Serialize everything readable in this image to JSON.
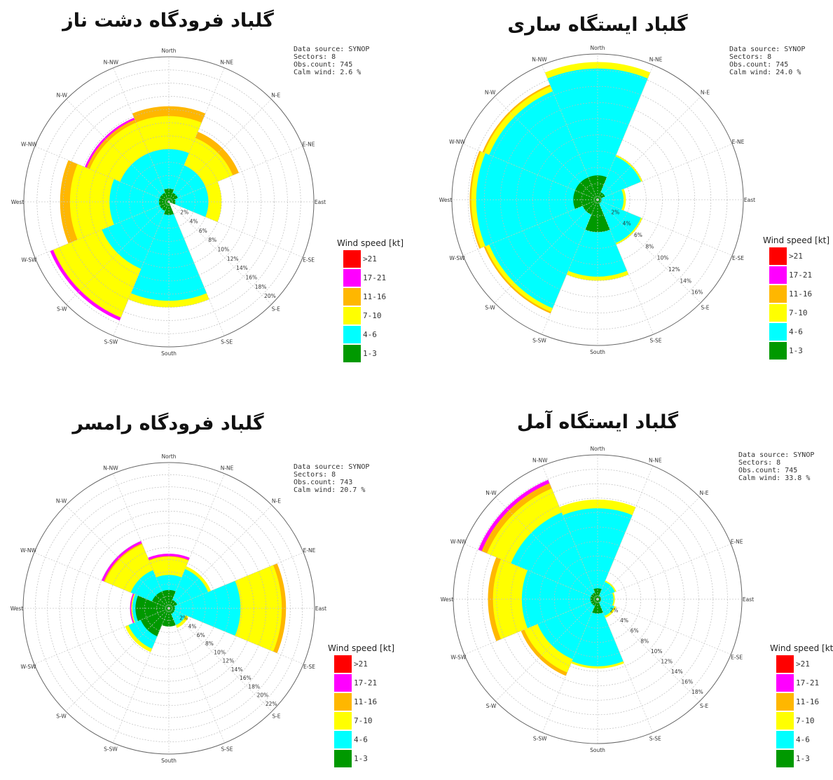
{
  "directions": [
    "North",
    "N-NE",
    "N-E",
    "E-NE",
    "East",
    "E-SE",
    "S-E",
    "S-SE",
    "South",
    "S-SW",
    "S-W",
    "W-SW",
    "West",
    "W-NW",
    "N-W",
    "N-NW"
  ],
  "legend": {
    "title": "Wind speed [kt]",
    "bins": [
      {
        "label": ">21",
        "color": "#ff0000"
      },
      {
        "label": "17-21",
        "color": "#ff00ff"
      },
      {
        "label": "11-16",
        "color": "#ffb700"
      },
      {
        "label": "7-10",
        "color": "#ffff00"
      },
      {
        "label": "4-6",
        "color": "#00ffff"
      },
      {
        "label": "1-3",
        "color": "#009900"
      }
    ]
  },
  "stack_colors": [
    "#009900",
    "#00ffff",
    "#ffff00",
    "#ffb700",
    "#ff00ff",
    "#ff0000"
  ],
  "chart_data": [
    {
      "type": "wind-rose",
      "title": "گلباد فرودگاه دشت ناز",
      "info": [
        "Data source: SYNOP",
        "Sectors: 8",
        "Obs.count: 745",
        "Calm wind: 2.6 %"
      ],
      "radial_ticks": [
        "2%",
        "4%",
        "6%",
        "8%",
        "10%",
        "12%",
        "14%",
        "16%",
        "18%",
        "20%"
      ],
      "rmax": 22,
      "sectors": [
        {
          "dir": "North",
          "cum": [
            2,
            8,
            13,
            14.5,
            14.5,
            14.5
          ]
        },
        {
          "dir": "N-E",
          "cum": [
            1.5,
            6,
            10.5,
            11.5,
            11.5,
            11.5
          ]
        },
        {
          "dir": "East",
          "cum": [
            1,
            6,
            8,
            8,
            8,
            8
          ]
        },
        {
          "dir": "S-E",
          "cum": [
            0,
            0,
            0,
            0,
            0,
            0
          ]
        },
        {
          "dir": "South",
          "cum": [
            2,
            15,
            16,
            16,
            16,
            16
          ]
        },
        {
          "dir": "S-W",
          "cum": [
            1.5,
            11,
            19,
            19,
            19.5,
            19.5
          ]
        },
        {
          "dir": "West",
          "cum": [
            1.5,
            9,
            15,
            16.5,
            16.5,
            16.5
          ]
        },
        {
          "dir": "N-W",
          "cum": [
            1.5,
            8,
            13,
            13.5,
            13.8,
            13.8
          ]
        }
      ]
    },
    {
      "type": "wind-rose",
      "title": "گلباد ایستگاه ساری",
      "info": [
        "Data source: SYNOP",
        "Sectors: 8",
        "Obs.count: 745",
        "Calm wind: 24.0 %"
      ],
      "radial_ticks": [
        "2%",
        "4%",
        "6%",
        "8%",
        "10%",
        "12%",
        "14%",
        "16%"
      ],
      "rmax": 18,
      "sectors": [
        {
          "dir": "North",
          "cum": [
            3,
            16.2,
            17,
            17,
            17,
            17
          ]
        },
        {
          "dir": "N-E",
          "cum": [
            1,
            5.8,
            6,
            6,
            6,
            6
          ]
        },
        {
          "dir": "East",
          "cum": [
            0.5,
            3.2,
            3.5,
            3.5,
            3.5,
            3.5
          ]
        },
        {
          "dir": "S-E",
          "cum": [
            0.5,
            5.8,
            6,
            6,
            6,
            6
          ]
        },
        {
          "dir": "South",
          "cum": [
            4,
            9.5,
            10,
            10,
            10,
            10
          ]
        },
        {
          "dir": "S-W",
          "cum": [
            2,
            14.5,
            15,
            15.2,
            15.2,
            15.2
          ]
        },
        {
          "dir": "West",
          "cum": [
            3,
            15,
            15.6,
            15.8,
            15.8,
            15.8
          ]
        },
        {
          "dir": "N-W",
          "cum": [
            3,
            14.5,
            15.2,
            15.4,
            15.4,
            15.4
          ]
        }
      ]
    },
    {
      "type": "wind-rose",
      "title": "گلباد فرودگاه رامسر",
      "info": [
        "Data source: SYNOP",
        "Sectors: 8",
        "Obs.count: 743",
        "Calm wind: 20.7 %"
      ],
      "radial_ticks": [
        "2%",
        "4%",
        "6%",
        "8%",
        "10%",
        "12%",
        "14%",
        "16%",
        "18%",
        "20%",
        "22%"
      ],
      "rmax": 24,
      "sectors": [
        {
          "dir": "North",
          "cum": [
            3,
            5.5,
            8.5,
            8.6,
            9,
            9
          ]
        },
        {
          "dir": "N-E",
          "cum": [
            1.5,
            7,
            7.5,
            7.5,
            7.5,
            7.5
          ]
        },
        {
          "dir": "East",
          "cum": [
            1,
            11.8,
            18.6,
            19.3,
            19.3,
            19.3
          ]
        },
        {
          "dir": "S-E",
          "cum": [
            1,
            3,
            3.5,
            3.5,
            3.5,
            3.5
          ]
        },
        {
          "dir": "South",
          "cum": [
            3,
            3,
            3,
            3,
            3,
            3
          ]
        },
        {
          "dir": "S-W",
          "cum": [
            5,
            7.2,
            7.8,
            7.8,
            7.8,
            7.8
          ]
        },
        {
          "dir": "West",
          "cum": [
            5.5,
            6,
            6.2,
            6.2,
            6.4,
            6.4
          ]
        },
        {
          "dir": "N-W",
          "cum": [
            3,
            6.8,
            11.4,
            11.6,
            12,
            12
          ]
        }
      ]
    },
    {
      "type": "wind-rose",
      "title": "گلباد ایستگاه آمل",
      "info": [
        "Data source: SYNOP",
        "Sectors: 8",
        "Obs.count: 745",
        "Calm wind: 33.8 %"
      ],
      "radial_ticks": [
        "2%",
        "4%",
        "6%",
        "8%",
        "10%",
        "12%",
        "14%",
        "16%",
        "18%"
      ],
      "rmax": 20,
      "sectors": [
        {
          "dir": "North",
          "cum": [
            1.5,
            12.6,
            13.8,
            13.8,
            13.8,
            13.8
          ]
        },
        {
          "dir": "N-E",
          "cum": [
            0.5,
            2.6,
            2.8,
            2.8,
            2.8,
            2.8
          ]
        },
        {
          "dir": "East",
          "cum": [
            0.5,
            2.2,
            2.4,
            2.4,
            2.4,
            2.4
          ]
        },
        {
          "dir": "S-E",
          "cum": [
            0.5,
            2.5,
            2.8,
            2.8,
            2.8,
            2.8
          ]
        },
        {
          "dir": "South",
          "cum": [
            2,
            9.3,
            9.6,
            9.6,
            9.6,
            9.6
          ]
        },
        {
          "dir": "S-W",
          "cum": [
            1,
            9,
            11,
            11.5,
            11.5,
            11.5
          ]
        },
        {
          "dir": "West",
          "cum": [
            1,
            10.5,
            14.5,
            15.2,
            15.2,
            15.2
          ]
        },
        {
          "dir": "N-W",
          "cum": [
            1,
            13,
            16.6,
            17.4,
            17.9,
            17.9
          ]
        }
      ]
    }
  ]
}
